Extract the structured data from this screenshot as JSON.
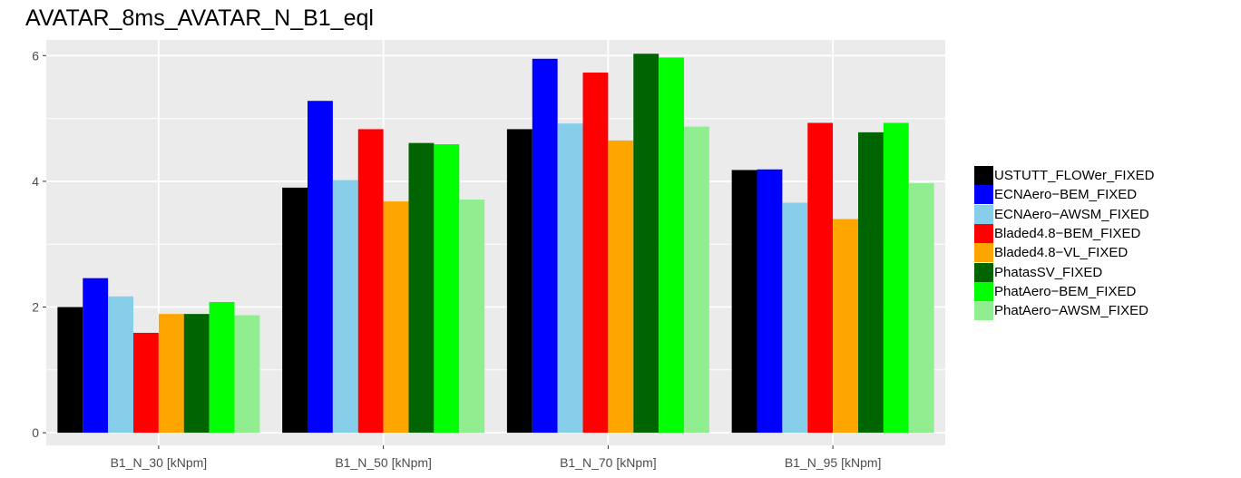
{
  "chart_data": {
    "type": "bar",
    "title": "AVATAR_8ms_AVATAR_N_B1_eql",
    "xlabel": "",
    "ylabel": "",
    "categories": [
      "B1_N_30 [kNpm]",
      "B1_N_50 [kNpm]",
      "B1_N_70 [kNpm]",
      "B1_N_95 [kNpm]"
    ],
    "ylim": [
      -0.2,
      6.25
    ],
    "yticks": [
      0,
      2,
      4,
      6
    ],
    "grid": true,
    "legend_position": "right",
    "series": [
      {
        "name": "USTUTT_FLOWer_FIXED",
        "color": "#000000",
        "values": [
          2.0,
          3.9,
          4.83,
          4.18
        ]
      },
      {
        "name": "ECNAero−BEM_FIXED",
        "color": "#0000ff",
        "values": [
          2.46,
          5.28,
          5.95,
          4.19
        ]
      },
      {
        "name": "ECNAero−AWSM_FIXED",
        "color": "#87ceeb",
        "values": [
          2.17,
          4.02,
          4.92,
          3.66
        ]
      },
      {
        "name": "Bladed4.8−BEM_FIXED",
        "color": "#ff0000",
        "values": [
          1.59,
          4.83,
          5.73,
          4.93
        ]
      },
      {
        "name": "Bladed4.8−VL_FIXED",
        "color": "#ffa500",
        "values": [
          1.89,
          3.68,
          4.65,
          3.4
        ]
      },
      {
        "name": "PhatasSV_FIXED",
        "color": "#006400",
        "values": [
          1.89,
          4.61,
          6.03,
          4.78
        ]
      },
      {
        "name": "PhatAero−BEM_FIXED",
        "color": "#00ff00",
        "values": [
          2.08,
          4.59,
          5.97,
          4.93
        ]
      },
      {
        "name": "PhatAero−AWSM_FIXED",
        "color": "#90ee90",
        "values": [
          1.87,
          3.71,
          4.87,
          3.97
        ]
      }
    ]
  }
}
